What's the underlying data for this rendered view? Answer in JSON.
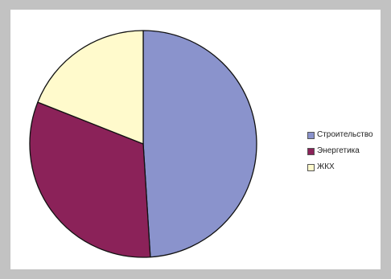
{
  "chart_data": {
    "type": "pie",
    "categories": [
      "Строительство",
      "Энергетика",
      "ЖКХ"
    ],
    "values": [
      49,
      32,
      19
    ],
    "colors": [
      "#8a93cc",
      "#8b2259",
      "#fffacc"
    ],
    "legend_position": "right",
    "start_angle_deg": 0,
    "direction": "clockwise"
  },
  "legend": {
    "items": [
      {
        "label": "Строительство",
        "color": "#8a93cc"
      },
      {
        "label": "Энергетика",
        "color": "#8b2259"
      },
      {
        "label": "ЖКХ",
        "color": "#fffacc"
      }
    ]
  },
  "frame": {
    "background": "#c2c2c2",
    "panel": "#ffffff",
    "stroke": "#111111"
  }
}
